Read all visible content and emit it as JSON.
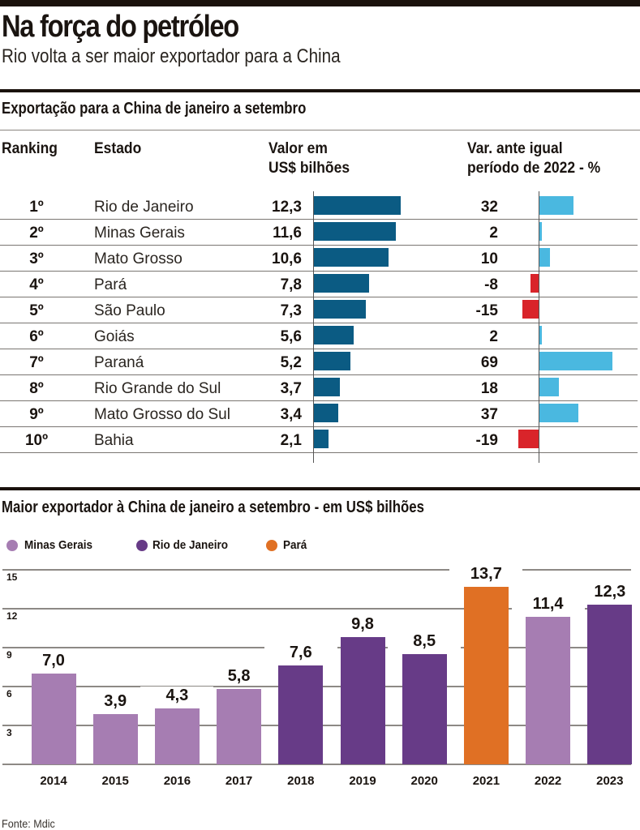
{
  "header": {
    "title": "Na força do petróleo",
    "subtitle": "Rio volta a ser maior exportador para a China"
  },
  "table_section": {
    "title": "Exportação para a China de janeiro a setembro",
    "columns": {
      "ranking": "Ranking",
      "estado": "Estado",
      "valor_line1": "Valor em",
      "valor_line2": "US$ bilhões",
      "var_line1": "Var. ante igual",
      "var_line2": "período de 2022 - %"
    }
  },
  "chart_data": [
    {
      "type": "table",
      "title": "Exportação para a China de janeiro a setembro",
      "columns": [
        "Ranking",
        "Estado",
        "Valor em US$ bilhões",
        "Var. ante igual período de 2022 - %"
      ],
      "rows": [
        {
          "rank": "1º",
          "state": "Rio de Janeiro",
          "value": 12.3,
          "value_label": "12,3",
          "var": 32,
          "var_label": "32"
        },
        {
          "rank": "2º",
          "state": "Minas Gerais",
          "value": 11.6,
          "value_label": "11,6",
          "var": 2,
          "var_label": "2"
        },
        {
          "rank": "3º",
          "state": "Mato Grosso",
          "value": 10.6,
          "value_label": "10,6",
          "var": 10,
          "var_label": "10"
        },
        {
          "rank": "4º",
          "state": "Pará",
          "value": 7.8,
          "value_label": "7,8",
          "var": -8,
          "var_label": "-8"
        },
        {
          "rank": "5º",
          "state": "São Paulo",
          "value": 7.3,
          "value_label": "7,3",
          "var": -15,
          "var_label": "-15"
        },
        {
          "rank": "6º",
          "state": "Goiás",
          "value": 5.6,
          "value_label": "5,6",
          "var": 2,
          "var_label": "2"
        },
        {
          "rank": "7º",
          "state": "Paraná",
          "value": 5.2,
          "value_label": "5,2",
          "var": 69,
          "var_label": "69"
        },
        {
          "rank": "8º",
          "state": "Rio Grande do Sul",
          "value": 3.7,
          "value_label": "3,7",
          "var": 18,
          "var_label": "18"
        },
        {
          "rank": "9º",
          "state": "Mato Grosso do Sul",
          "value": 3.4,
          "value_label": "3,4",
          "var": 37,
          "var_label": "37"
        },
        {
          "rank": "10º",
          "state": "Bahia",
          "value": 2.1,
          "value_label": "2,1",
          "var": -19,
          "var_label": "-19"
        }
      ],
      "colors": {
        "value_bar": "#0b5b83",
        "var_positive": "#4ab8e0",
        "var_negative": "#d9242a"
      }
    },
    {
      "type": "bar",
      "title": "Maior exportador à China de janeiro a setembro - em US$ bilhões",
      "xlabel": "",
      "ylabel": "",
      "ylim": [
        0,
        15
      ],
      "yticks": [
        3,
        6,
        9,
        12,
        15
      ],
      "grid": true,
      "legend_position": "top-left",
      "legend": [
        {
          "name": "Minas Gerais",
          "color": "#a67db2"
        },
        {
          "name": "Rio de Janeiro",
          "color": "#673b87"
        },
        {
          "name": "Pará",
          "color": "#e07024"
        }
      ],
      "categories": [
        "2014",
        "2015",
        "2016",
        "2017",
        "2018",
        "2019",
        "2020",
        "2021",
        "2022",
        "2023"
      ],
      "values": [
        7.0,
        3.9,
        4.3,
        5.8,
        7.6,
        9.8,
        8.5,
        13.7,
        11.4,
        12.3
      ],
      "value_labels": [
        "7,0",
        "3,9",
        "4,3",
        "5,8",
        "7,6",
        "9,8",
        "8,5",
        "13,7",
        "11,4",
        "12,3"
      ],
      "leader": [
        "Minas Gerais",
        "Minas Gerais",
        "Minas Gerais",
        "Minas Gerais",
        "Rio de Janeiro",
        "Rio de Janeiro",
        "Rio de Janeiro",
        "Pará",
        "Minas Gerais",
        "Rio de Janeiro"
      ]
    }
  ],
  "footer": {
    "source": "Fonte: Mdic"
  }
}
